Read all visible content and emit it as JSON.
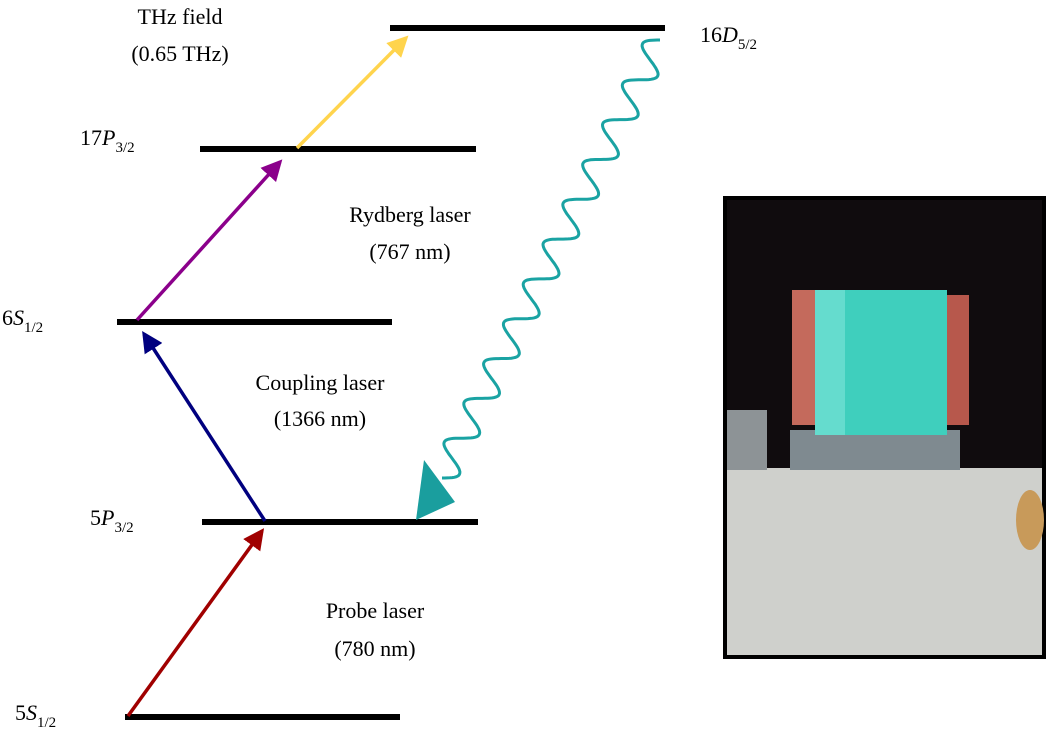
{
  "levels": [
    {
      "prefix": "5",
      "symbol": "S",
      "subscript": "1/2"
    },
    {
      "prefix": "5",
      "symbol": "P",
      "subscript": "3/2"
    },
    {
      "prefix": "6",
      "symbol": "S",
      "subscript": "1/2"
    },
    {
      "prefix": "17",
      "symbol": "P",
      "subscript": "3/2"
    },
    {
      "prefix": "16",
      "symbol": "D",
      "subscript": "5/2"
    }
  ],
  "transitions": [
    {
      "lines": [
        "Probe laser",
        "(780 nm)"
      ]
    },
    {
      "lines": [
        "Coupling laser",
        "(1366 nm)"
      ]
    },
    {
      "lines": [
        "Rydberg laser",
        "(767 nm)"
      ]
    },
    {
      "lines": [
        "THz field",
        "(0.65 THz)"
      ]
    }
  ]
}
